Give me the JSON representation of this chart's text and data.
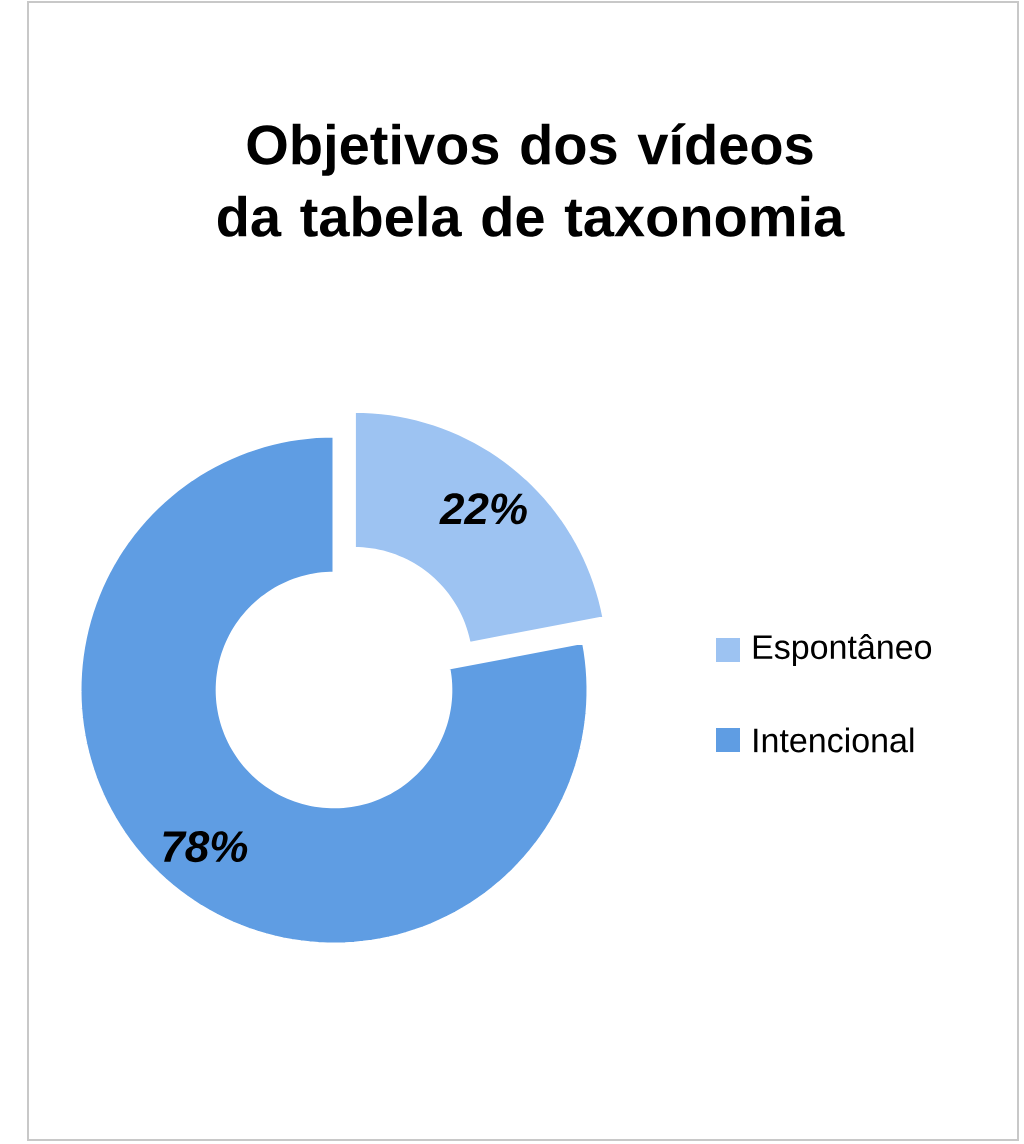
{
  "chart_data": {
    "type": "donut",
    "title": "Objetivos dos vídeos da tabela de taxonomia",
    "categories": [
      "Espontâneo",
      "Intencional"
    ],
    "values": [
      22,
      78
    ],
    "colors": [
      "#9dc3f2",
      "#5f9de3"
    ],
    "value_labels": [
      "22%",
      "78%"
    ],
    "legend": "right"
  }
}
